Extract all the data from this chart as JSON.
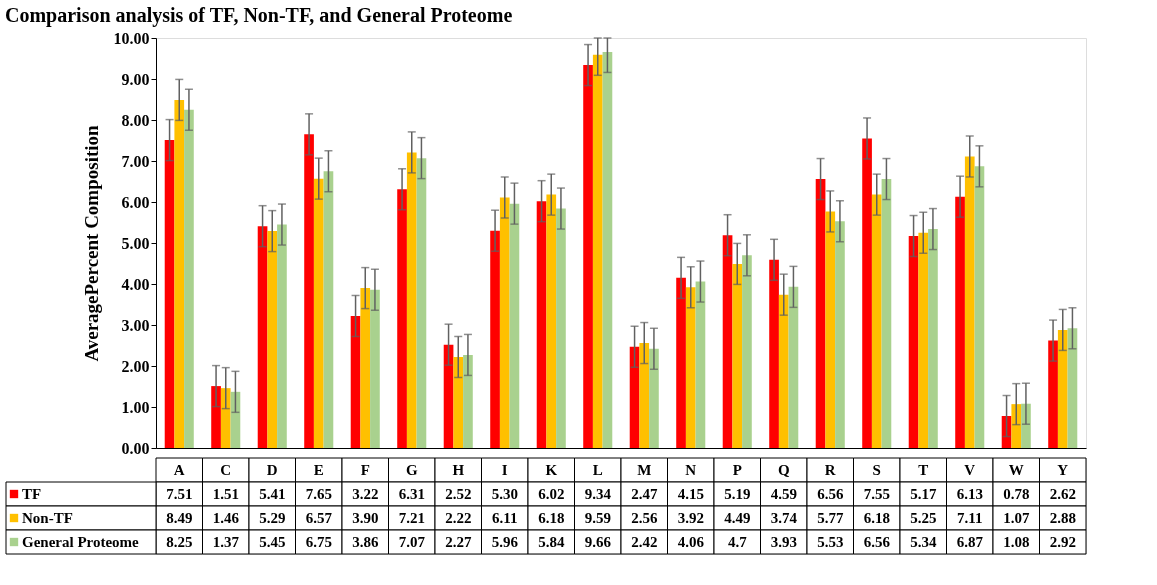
{
  "chart_data": {
    "type": "bar",
    "title": "Comparison analysis of TF, Non-TF, and General Proteome",
    "ylabel": "AveragePercent Composition",
    "categories": [
      "A",
      "C",
      "D",
      "E",
      "F",
      "G",
      "H",
      "I",
      "K",
      "L",
      "M",
      "N",
      "P",
      "Q",
      "R",
      "S",
      "T",
      "V",
      "W",
      "Y"
    ],
    "series": [
      {
        "name": "TF",
        "color": "#ff0000",
        "values": [
          7.51,
          1.51,
          5.41,
          7.65,
          3.22,
          6.31,
          2.52,
          5.3,
          6.02,
          9.34,
          2.47,
          4.15,
          5.19,
          4.59,
          6.56,
          7.55,
          5.17,
          6.13,
          0.78,
          2.62
        ],
        "value_labels": [
          "7.51",
          "1.51",
          "5.41",
          "7.65",
          "3.22",
          "6.31",
          "2.52",
          "5.30",
          "6.02",
          "9.34",
          "2.47",
          "4.15",
          "5.19",
          "4.59",
          "6.56",
          "7.55",
          "5.17",
          "6.13",
          "0.78",
          "2.62"
        ],
        "errors": [
          0.5,
          0.5,
          0.5,
          0.5,
          0.5,
          0.5,
          0.5,
          0.5,
          0.5,
          0.5,
          0.5,
          0.5,
          0.5,
          0.5,
          0.5,
          0.5,
          0.5,
          0.5,
          0.5,
          0.5
        ]
      },
      {
        "name": "Non-TF",
        "color": "#ffc000",
        "values": [
          8.49,
          1.46,
          5.29,
          6.57,
          3.9,
          7.21,
          2.22,
          6.11,
          6.18,
          9.59,
          2.56,
          3.92,
          4.49,
          3.74,
          5.77,
          6.18,
          5.25,
          7.11,
          1.07,
          2.88
        ],
        "value_labels": [
          "8.49",
          "1.46",
          "5.29",
          "6.57",
          "3.90",
          "7.21",
          "2.22",
          "6.11",
          "6.18",
          "9.59",
          "2.56",
          "3.92",
          "4.49",
          "3.74",
          "5.77",
          "6.18",
          "5.25",
          "7.11",
          "1.07",
          "2.88"
        ],
        "errors": [
          0.5,
          0.5,
          0.5,
          0.5,
          0.5,
          0.5,
          0.5,
          0.5,
          0.5,
          [
            9.09,
            10
          ],
          0.5,
          0.5,
          0.5,
          0.5,
          0.5,
          0.5,
          0.5,
          0.5,
          0.5,
          0.5
        ]
      },
      {
        "name": "General Proteome",
        "color": "#a9d18e",
        "values": [
          8.25,
          1.37,
          5.45,
          6.75,
          3.86,
          7.07,
          2.27,
          5.96,
          5.84,
          9.66,
          2.42,
          4.06,
          4.7,
          3.93,
          5.53,
          6.56,
          5.34,
          6.87,
          1.08,
          2.92
        ],
        "value_labels": [
          "8.25",
          "1.37",
          "5.45",
          "6.75",
          "3.86",
          "7.07",
          "2.27",
          "5.96",
          "5.84",
          "9.66",
          "2.42",
          "4.06",
          "4.7",
          "3.93",
          "5.53",
          "6.56",
          "5.34",
          "6.87",
          "1.08",
          "2.92"
        ],
        "errors": [
          0.5,
          0.5,
          0.5,
          0.5,
          0.5,
          0.5,
          0.5,
          0.5,
          0.5,
          [
            9.16,
            10
          ],
          0.5,
          0.5,
          0.5,
          0.5,
          0.5,
          0.5,
          0.5,
          0.5,
          0.5,
          0.5
        ]
      }
    ],
    "ylim": [
      0,
      10
    ],
    "yticks": [
      {
        "value": 0,
        "label": "0.00"
      },
      {
        "value": 1,
        "label": "1.00"
      },
      {
        "value": 2,
        "label": "2.00"
      },
      {
        "value": 3,
        "label": "3.00"
      },
      {
        "value": 4,
        "label": "4.00"
      },
      {
        "value": 5,
        "label": "5.00"
      },
      {
        "value": 6,
        "label": "6.00"
      },
      {
        "value": 7,
        "label": "7.00"
      },
      {
        "value": 8,
        "label": "8.00"
      },
      {
        "value": 9,
        "label": "9.00"
      },
      {
        "value": 10,
        "label": "10.00"
      }
    ],
    "grid": false,
    "legend": "bottom"
  }
}
